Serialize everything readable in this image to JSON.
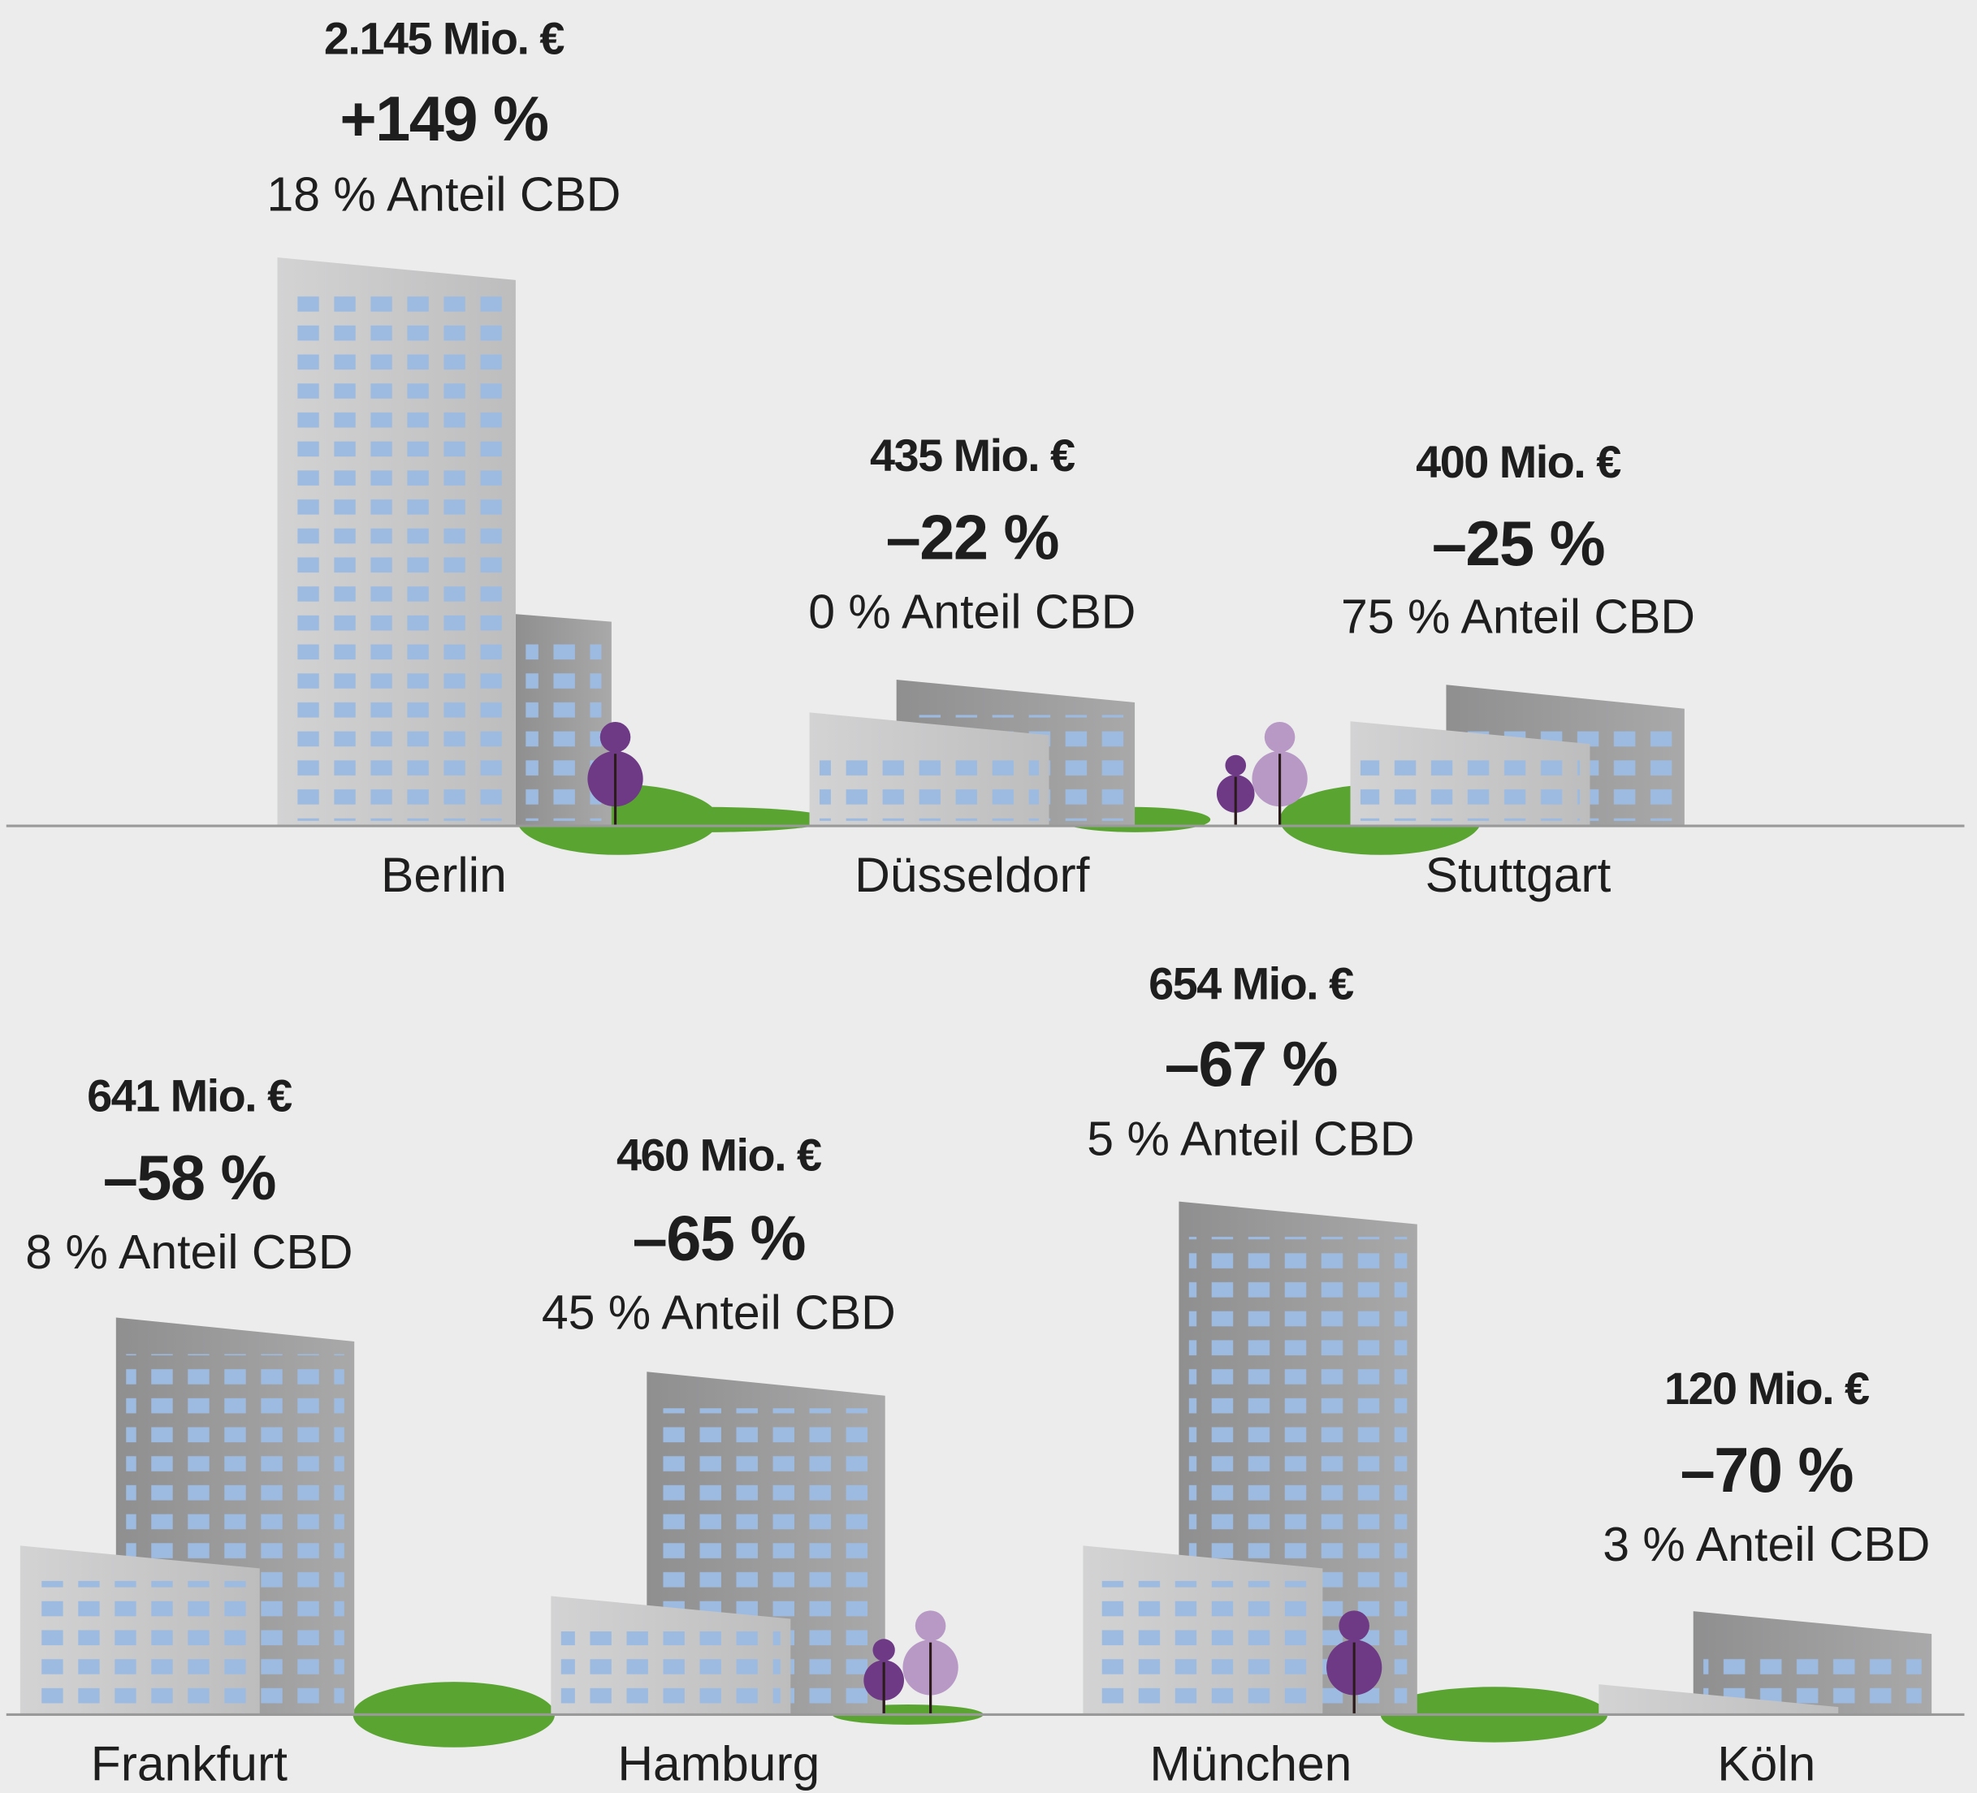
{
  "cities": [
    {
      "name": "Berlin",
      "volume": "2.145 Mio. €",
      "change": "+149 %",
      "cbd_share": "18 % Anteil CBD"
    },
    {
      "name": "Düsseldorf",
      "volume": "435 Mio. €",
      "change": "–22 %",
      "cbd_share": "0 % Anteil CBD"
    },
    {
      "name": "Stuttgart",
      "volume": "400 Mio. €",
      "change": "–25 %",
      "cbd_share": "75 % Anteil CBD"
    },
    {
      "name": "Frankfurt",
      "volume": "641 Mio. €",
      "change": "–58 %",
      "cbd_share": "8 % Anteil CBD"
    },
    {
      "name": "Hamburg",
      "volume": "460 Mio. €",
      "change": "–65 %",
      "cbd_share": "45 % Anteil CBD"
    },
    {
      "name": "München",
      "volume": "654 Mio. €",
      "change": "–67 %",
      "cbd_share": "5 % Anteil CBD"
    },
    {
      "name": "Köln",
      "volume": "120 Mio. €",
      "change": "–70 %",
      "cbd_share": "3 % Anteil CBD"
    }
  ]
}
